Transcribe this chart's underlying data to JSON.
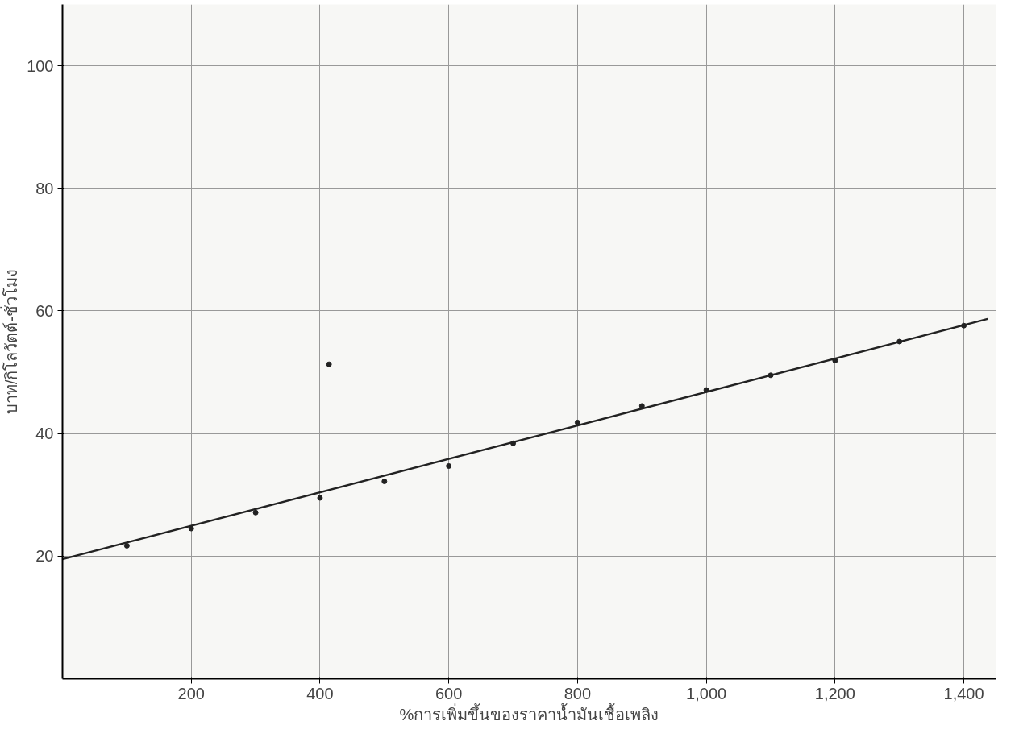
{
  "chart_data": {
    "type": "scatter",
    "xlabel": "%การเพิ่มขึ้นของราคาน้ำมันเชื้อเพลิง",
    "ylabel": "บาท/กิโลวัตต์-ชั่วโมง",
    "series": [
      {
        "color": "#222222",
        "marker": "circle",
        "x": [
          100,
          200,
          300,
          400,
          500,
          600,
          700,
          800,
          900,
          1000,
          1100,
          1200,
          1300,
          1400,
          414
        ],
        "values": [
          21.7,
          24.5,
          27.1,
          29.5,
          32.2,
          34.7,
          38.4,
          41.8,
          44.5,
          47.1,
          49.5,
          51.9,
          55.0,
          57.6,
          51.3
        ]
      },
      {
        "type": "line",
        "color": "#222222",
        "line_style": "solid",
        "x": [
          0,
          1437
        ],
        "values": [
          19.5,
          58.7
        ]
      }
    ],
    "xlim": [
      0,
      1450
    ],
    "ylim": [
      0,
      110
    ],
    "xticks": [
      200,
      400,
      600,
      800,
      {
        "value": 1000,
        "label": "1,000"
      },
      {
        "value": 1200,
        "label": "1,200"
      },
      {
        "value": 1400,
        "label": "1,400"
      }
    ],
    "yticks": [
      20,
      40,
      60,
      80,
      100
    ],
    "grid": true
  }
}
